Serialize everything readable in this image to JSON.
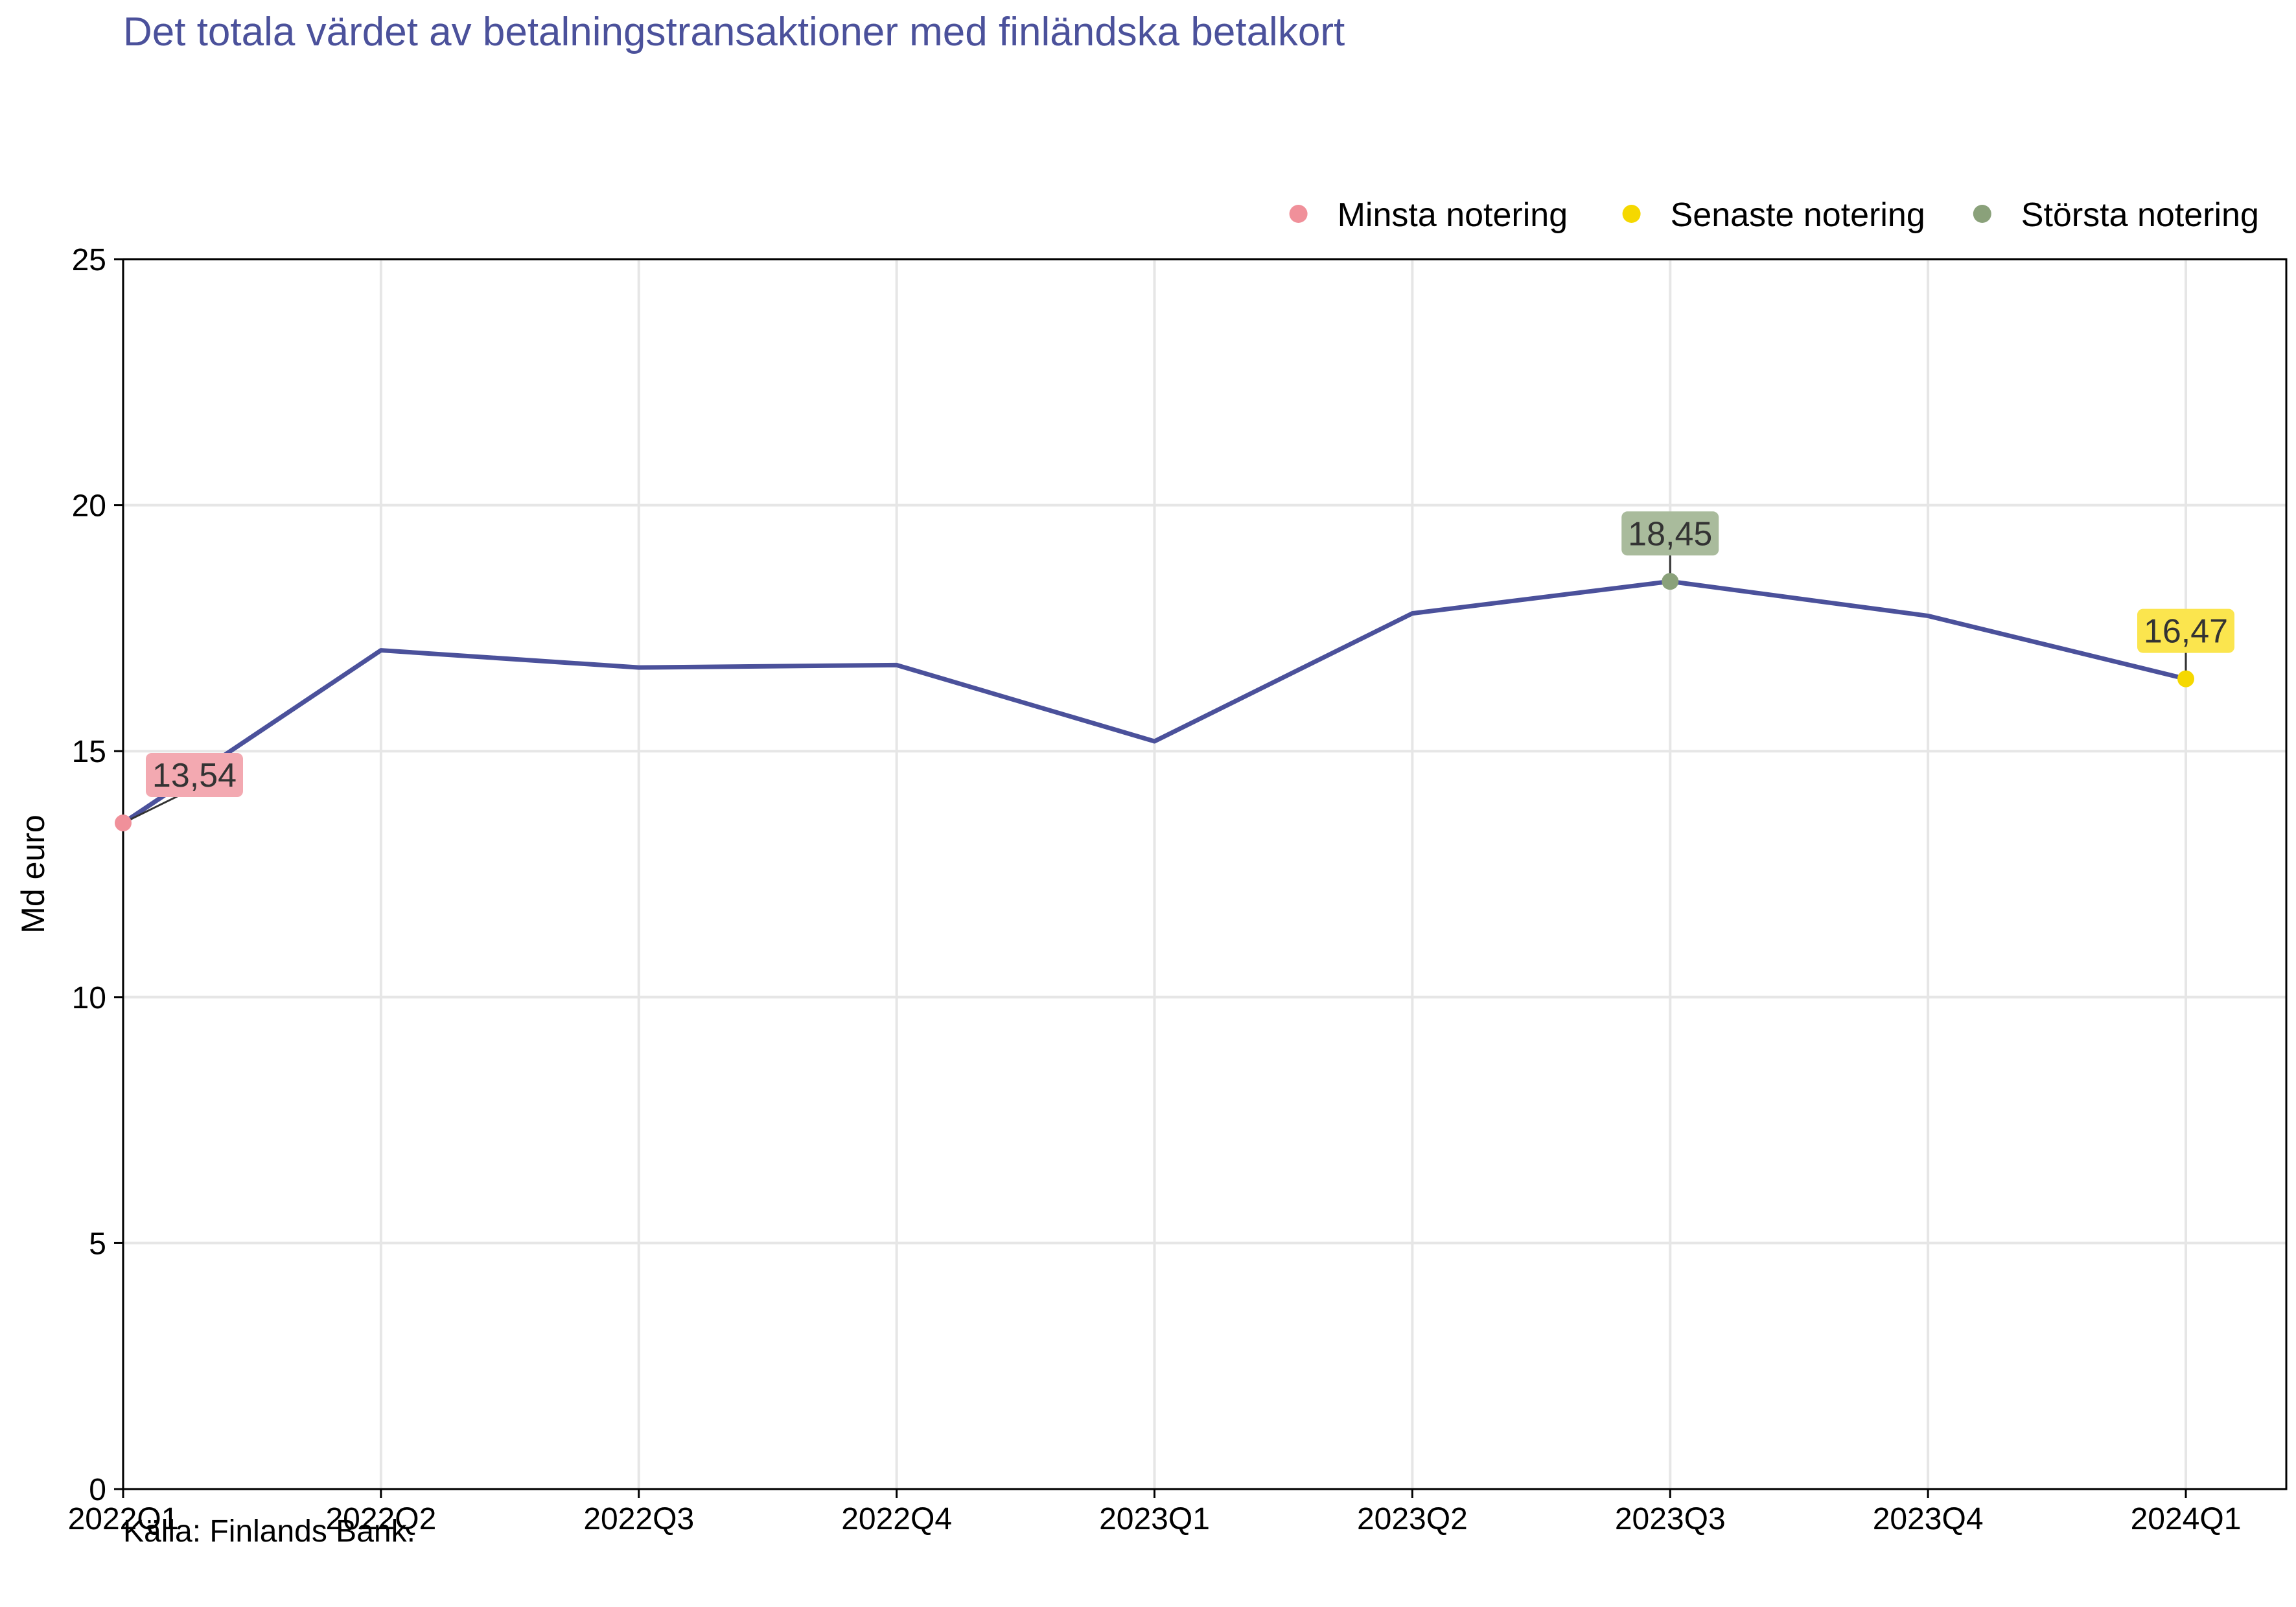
{
  "chart_data": {
    "type": "line",
    "title": "Det totala värdet av betalningstransaktioner med finländska betalkort",
    "ylabel": "Md euro",
    "xlabel": "",
    "source": "Källa: Finlands Bank.",
    "categories": [
      "2022Q1",
      "2022Q2",
      "2022Q3",
      "2022Q4",
      "2023Q1",
      "2023Q2",
      "2023Q3",
      "2023Q4",
      "2024Q1"
    ],
    "series": [
      {
        "values": [
          13.54,
          17.05,
          16.7,
          16.75,
          15.2,
          17.8,
          18.45,
          17.75,
          16.47
        ]
      }
    ],
    "ylim": [
      0,
      25
    ],
    "yticks": [
      0,
      5,
      10,
      15,
      20,
      25
    ],
    "grid": true,
    "legend": {
      "placement": "top-right",
      "entries": [
        {
          "label": "Minsta notering",
          "color": "#f0909a"
        },
        {
          "label": "Senaste notering",
          "color": "#f5d800"
        },
        {
          "label": "Största notering",
          "color": "#8aa17a"
        }
      ]
    },
    "highlights": [
      {
        "kind": "min",
        "index": 0,
        "label": "13,54",
        "dot_color": "#f0909a",
        "box_color": "#f3a9b1"
      },
      {
        "kind": "max",
        "index": 6,
        "label": "18,45",
        "dot_color": "#8aa17a",
        "box_color": "#a9bb9c"
      },
      {
        "kind": "latest",
        "index": 8,
        "label": "16,47",
        "dot_color": "#f5d800",
        "box_color": "#fbe54e"
      }
    ],
    "colors": {
      "line": "#4b519b",
      "grid": "#e6e6e6",
      "title": "#4b519b"
    }
  }
}
